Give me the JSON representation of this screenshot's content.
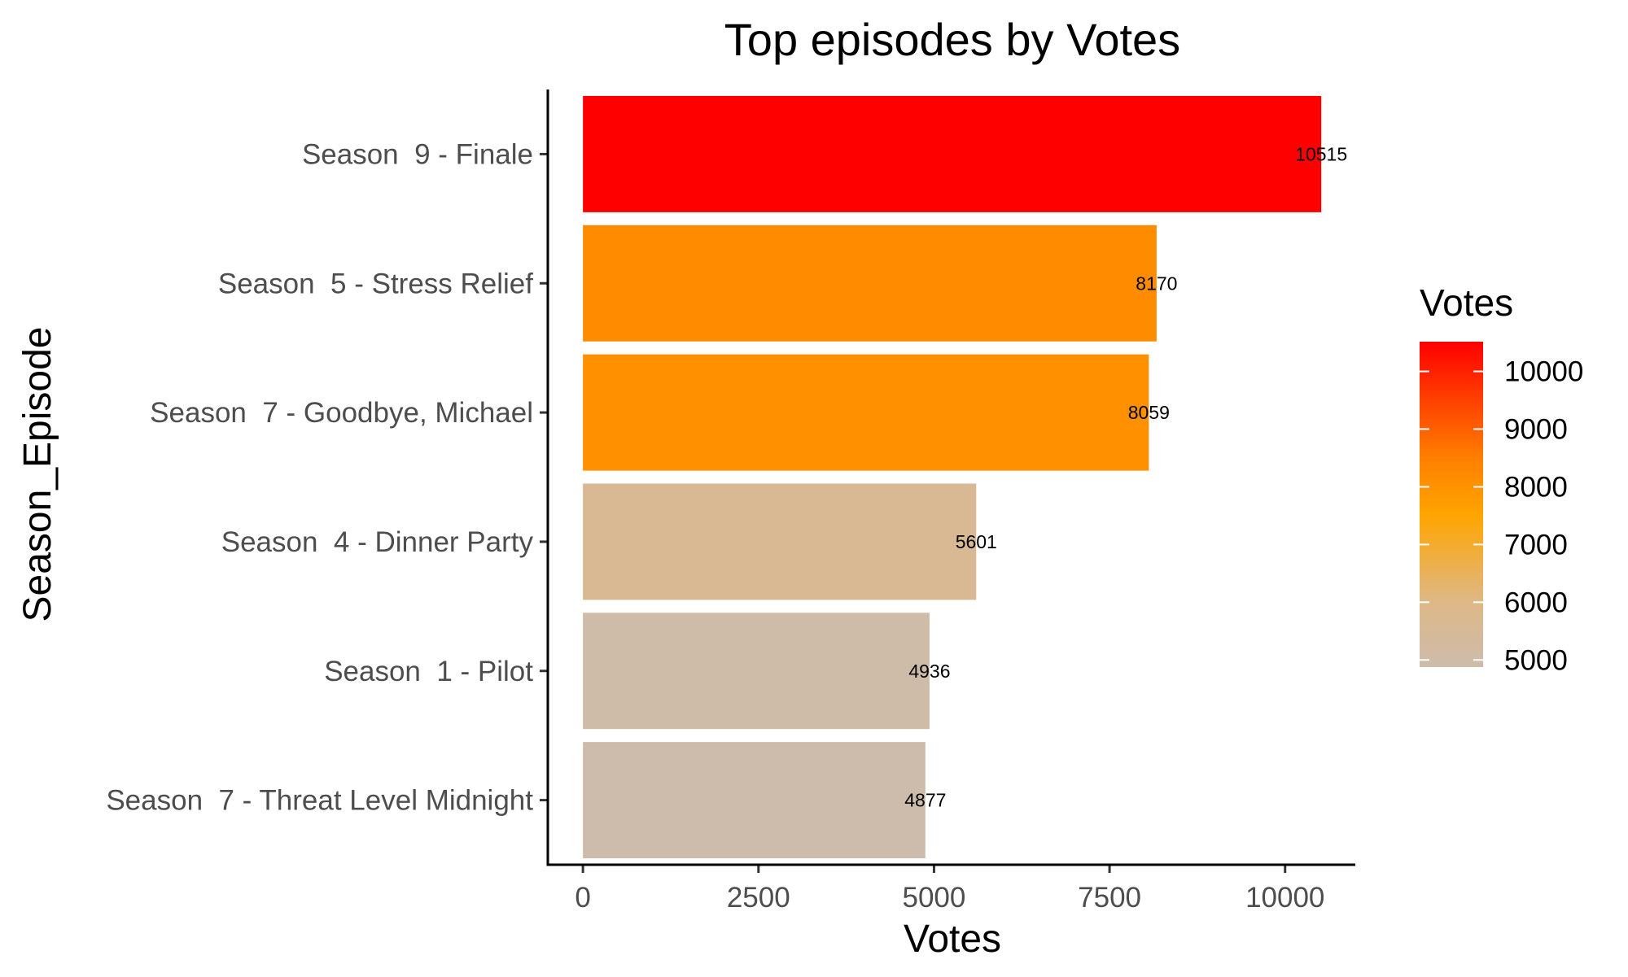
{
  "chart_data": {
    "type": "bar",
    "orientation": "horizontal",
    "title": "Top episodes by Votes",
    "xlabel": "Votes",
    "ylabel": "Season_Episode",
    "categories": [
      "Season  9 - Finale",
      "Season  5 - Stress Relief",
      "Season  7 - Goodbye, Michael",
      "Season  4 - Dinner Party",
      "Season  1 - Pilot",
      "Season  7 - Threat Level Midnight"
    ],
    "values": [
      10515,
      8170,
      8059,
      5601,
      4936,
      4877
    ],
    "value_labels": [
      "10515",
      "8170",
      "8059",
      "5601",
      "4936",
      "4877"
    ],
    "xlim": [
      -500,
      11000
    ],
    "xticks": [
      0,
      2500,
      5000,
      7500,
      10000
    ],
    "xtick_labels": [
      "0",
      "2500",
      "5000",
      "7500",
      "10000"
    ],
    "grid": false,
    "legend": {
      "title": "Votes",
      "position": "right",
      "type": "colorbar",
      "range": [
        4877,
        10515
      ],
      "ticks": [
        5000,
        6000,
        7000,
        8000,
        9000,
        10000
      ],
      "tick_labels": [
        "5000",
        "6000",
        "7000",
        "8000",
        "9000",
        "10000"
      ]
    },
    "colors": {
      "gradient_stops": [
        {
          "value": 4877,
          "color": "#cdbcab"
        },
        {
          "value": 6000,
          "color": "#deb887"
        },
        {
          "value": 7500,
          "color": "#ffa500"
        },
        {
          "value": 8500,
          "color": "#ff7f00"
        },
        {
          "value": 10515,
          "color": "#ff0000"
        }
      ]
    }
  }
}
